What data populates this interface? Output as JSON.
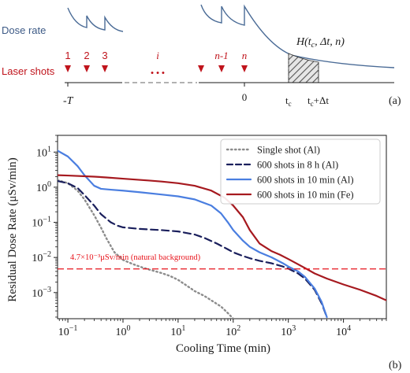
{
  "colors": {
    "dose_curve": "#4a6b96",
    "laser_red": "#c0141c",
    "ink": "#1a1a1a",
    "series_single": "#8c8c8c",
    "series_600_8h": "#1a1f5c",
    "series_600_10min_al": "#4a7ee0",
    "series_600_10min_fe": "#a6191f",
    "background_line": "#e8141c",
    "hatch": "#555555"
  },
  "schematic": {
    "panel_label": "(a)",
    "dose_rate_label": "Dose rate",
    "laser_shots_label": "Laser shots",
    "shot_labels": [
      "1",
      "2",
      "3",
      "i",
      "n-1",
      "n"
    ],
    "ellipsis": "• • •",
    "h_label": "H(t",
    "h_sub": "c",
    "h_rest": ", Δt, n)",
    "axis": {
      "neg_t": "-T",
      "zero": "0",
      "tc": "t",
      "tc_sub": "c",
      "tc_dt": "t",
      "tc_dt_sub": "c",
      "tc_dt_suffix": "+Δt"
    }
  },
  "chart_data": {
    "type": "line",
    "panel_label": "(b)",
    "xlabel": "Cooling Time (min)",
    "ylabel": "Residual Dose Rate (μSv/min)",
    "xscale": "log",
    "yscale": "log",
    "xlim": [
      0.065,
      60000
    ],
    "ylim": [
      0.00018,
      30
    ],
    "x_ticks": [
      {
        "value": 0.1,
        "base": "10",
        "exp": "−1"
      },
      {
        "value": 1,
        "base": "10",
        "exp": "0"
      },
      {
        "value": 10,
        "base": "10",
        "exp": "1"
      },
      {
        "value": 100,
        "base": "10",
        "exp": "2"
      },
      {
        "value": 1000,
        "base": "10",
        "exp": "3"
      },
      {
        "value": 10000,
        "base": "10",
        "exp": "4"
      }
    ],
    "y_ticks": [
      {
        "value": 0.001,
        "base": "10",
        "exp": "−3"
      },
      {
        "value": 0.01,
        "base": "10",
        "exp": "−2"
      },
      {
        "value": 0.1,
        "base": "10",
        "exp": "−1"
      },
      {
        "value": 1,
        "base": "10",
        "exp": "0"
      },
      {
        "value": 10,
        "base": "10",
        "exp": "1"
      }
    ],
    "legend_position": "top-right",
    "background": {
      "value": 0.0047,
      "label": "4.7×10⁻³μSv/min (natural background)"
    },
    "series": [
      {
        "name": "Single shot (Al)",
        "color": "#8c8c8c",
        "style": "dotted",
        "points": [
          [
            0.065,
            1.6
          ],
          [
            0.1,
            1.3
          ],
          [
            0.15,
            0.8
          ],
          [
            0.2,
            0.45
          ],
          [
            0.3,
            0.16
          ],
          [
            0.4,
            0.07
          ],
          [
            0.5,
            0.035
          ],
          [
            0.7,
            0.014
          ],
          [
            1,
            0.0085
          ],
          [
            1.5,
            0.0065
          ],
          [
            2,
            0.0055
          ],
          [
            3,
            0.0045
          ],
          [
            5,
            0.0036
          ],
          [
            7,
            0.003
          ],
          [
            10,
            0.0023
          ],
          [
            15,
            0.0015
          ],
          [
            20,
            0.0011
          ],
          [
            30,
            0.0008
          ],
          [
            40,
            0.0006
          ],
          [
            60,
            0.0004
          ],
          [
            80,
            0.00026
          ],
          [
            100,
            0.00018
          ]
        ]
      },
      {
        "name": "600 shots in 8 h (Al)",
        "color": "#1a1f5c",
        "style": "dashed",
        "points": [
          [
            0.065,
            1.5
          ],
          [
            0.1,
            1.3
          ],
          [
            0.15,
            0.95
          ],
          [
            0.2,
            0.6
          ],
          [
            0.3,
            0.3
          ],
          [
            0.4,
            0.17
          ],
          [
            0.6,
            0.1
          ],
          [
            0.8,
            0.08
          ],
          [
            1,
            0.072
          ],
          [
            2,
            0.065
          ],
          [
            5,
            0.06
          ],
          [
            10,
            0.055
          ],
          [
            20,
            0.045
          ],
          [
            30,
            0.036
          ],
          [
            50,
            0.025
          ],
          [
            80,
            0.017
          ],
          [
            100,
            0.014
          ],
          [
            150,
            0.011
          ],
          [
            200,
            0.0095
          ],
          [
            300,
            0.008
          ],
          [
            500,
            0.0068
          ],
          [
            800,
            0.0055
          ],
          [
            1000,
            0.0048
          ],
          [
            1500,
            0.0035
          ],
          [
            2000,
            0.0025
          ],
          [
            3000,
            0.0012
          ],
          [
            4000,
            0.0005
          ],
          [
            5000,
            0.0002
          ]
        ]
      },
      {
        "name": "600 shots in 10 min (Al)",
        "color": "#4a7ee0",
        "style": "solid",
        "points": [
          [
            0.065,
            11
          ],
          [
            0.1,
            7.5
          ],
          [
            0.15,
            4
          ],
          [
            0.2,
            2.2
          ],
          [
            0.3,
            1.1
          ],
          [
            0.4,
            0.9
          ],
          [
            0.6,
            0.85
          ],
          [
            1,
            0.8
          ],
          [
            2,
            0.72
          ],
          [
            5,
            0.62
          ],
          [
            10,
            0.55
          ],
          [
            20,
            0.45
          ],
          [
            40,
            0.3
          ],
          [
            60,
            0.18
          ],
          [
            80,
            0.1
          ],
          [
            100,
            0.06
          ],
          [
            150,
            0.03
          ],
          [
            200,
            0.02
          ],
          [
            300,
            0.014
          ],
          [
            500,
            0.01
          ],
          [
            800,
            0.0068
          ],
          [
            1000,
            0.0055
          ],
          [
            1500,
            0.004
          ],
          [
            2000,
            0.0028
          ],
          [
            3000,
            0.0013
          ],
          [
            4000,
            0.00055
          ],
          [
            5000,
            0.0002
          ]
        ]
      },
      {
        "name": "600 shots in 10 min (Fe)",
        "color": "#a6191f",
        "style": "solid",
        "points": [
          [
            0.065,
            2.2
          ],
          [
            0.1,
            2.15
          ],
          [
            0.3,
            2
          ],
          [
            0.5,
            1.9
          ],
          [
            1,
            1.75
          ],
          [
            3,
            1.55
          ],
          [
            5,
            1.45
          ],
          [
            10,
            1.3
          ],
          [
            20,
            1.1
          ],
          [
            40,
            0.8
          ],
          [
            70,
            0.5
          ],
          [
            100,
            0.3
          ],
          [
            150,
            0.14
          ],
          [
            200,
            0.06
          ],
          [
            300,
            0.025
          ],
          [
            500,
            0.015
          ],
          [
            700,
            0.012
          ],
          [
            1000,
            0.009
          ],
          [
            2000,
            0.005
          ],
          [
            3000,
            0.0035
          ],
          [
            5000,
            0.0025
          ],
          [
            10000,
            0.0017
          ],
          [
            20000,
            0.0012
          ],
          [
            40000,
            0.0008
          ],
          [
            60000,
            0.0006
          ]
        ]
      }
    ]
  }
}
